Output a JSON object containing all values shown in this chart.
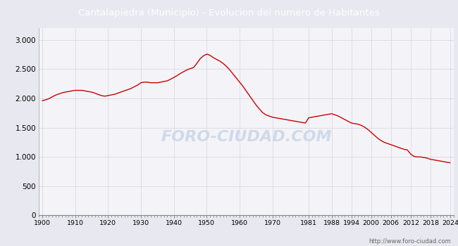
{
  "title": "Cantalapiedra (Municipio) - Evolucion del numero de Habitantes",
  "title_bg": "#4a7fd4",
  "title_color": "white",
  "line_color": "#cc0000",
  "bg_color": "#e8e8f0",
  "plot_bg": "#f4f4f8",
  "footer_text": "http://www.foro-ciudad.com",
  "watermark": "FORO-CIUDAD.COM",
  "years": [
    1900,
    1901,
    1902,
    1903,
    1904,
    1905,
    1906,
    1907,
    1908,
    1909,
    1910,
    1911,
    1912,
    1913,
    1914,
    1915,
    1916,
    1917,
    1918,
    1919,
    1920,
    1921,
    1922,
    1923,
    1924,
    1925,
    1926,
    1927,
    1928,
    1929,
    1930,
    1931,
    1932,
    1933,
    1934,
    1935,
    1936,
    1937,
    1938,
    1939,
    1940,
    1941,
    1942,
    1943,
    1944,
    1945,
    1946,
    1947,
    1948,
    1949,
    1950,
    1951,
    1952,
    1953,
    1954,
    1955,
    1956,
    1957,
    1958,
    1959,
    1960,
    1961,
    1962,
    1963,
    1964,
    1965,
    1966,
    1967,
    1968,
    1969,
    1970,
    1971,
    1972,
    1973,
    1974,
    1975,
    1976,
    1977,
    1978,
    1979,
    1980,
    1981,
    1982,
    1983,
    1984,
    1985,
    1986,
    1987,
    1988,
    1989,
    1990,
    1991,
    1992,
    1993,
    1994,
    1995,
    1996,
    1997,
    1998,
    1999,
    2000,
    2001,
    2002,
    2003,
    2004,
    2005,
    2006,
    2007,
    2008,
    2009,
    2010,
    2011,
    2012,
    2013,
    2014,
    2015,
    2016,
    2017,
    2018,
    2019,
    2020,
    2021,
    2022,
    2023,
    2024
  ],
  "population": [
    1960,
    1975,
    1995,
    2025,
    2055,
    2075,
    2095,
    2108,
    2118,
    2128,
    2138,
    2138,
    2138,
    2128,
    2118,
    2108,
    2090,
    2068,
    2048,
    2038,
    2048,
    2060,
    2070,
    2090,
    2110,
    2130,
    2150,
    2170,
    2200,
    2228,
    2268,
    2278,
    2278,
    2268,
    2268,
    2268,
    2278,
    2290,
    2300,
    2328,
    2358,
    2390,
    2428,
    2458,
    2488,
    2510,
    2528,
    2598,
    2678,
    2728,
    2758,
    2738,
    2698,
    2668,
    2638,
    2598,
    2548,
    2488,
    2418,
    2348,
    2278,
    2208,
    2128,
    2048,
    1968,
    1888,
    1820,
    1758,
    1718,
    1698,
    1678,
    1668,
    1658,
    1648,
    1638,
    1628,
    1618,
    1608,
    1598,
    1588,
    1578,
    1668,
    1678,
    1688,
    1698,
    1708,
    1718,
    1728,
    1738,
    1718,
    1698,
    1668,
    1638,
    1608,
    1578,
    1568,
    1558,
    1538,
    1508,
    1468,
    1418,
    1368,
    1318,
    1278,
    1248,
    1228,
    1208,
    1188,
    1168,
    1148,
    1128,
    1118,
    1048,
    1008,
    998,
    998,
    988,
    978,
    958,
    948,
    938,
    928,
    918,
    908,
    898
  ],
  "xticks": [
    1900,
    1910,
    1920,
    1930,
    1940,
    1950,
    1960,
    1970,
    1981,
    1988,
    1994,
    2000,
    2006,
    2012,
    2018,
    2024
  ],
  "yticks": [
    0,
    500,
    1000,
    1500,
    2000,
    2500,
    3000
  ],
  "ylim": [
    0,
    3200
  ],
  "xlim": [
    1899,
    2025
  ]
}
